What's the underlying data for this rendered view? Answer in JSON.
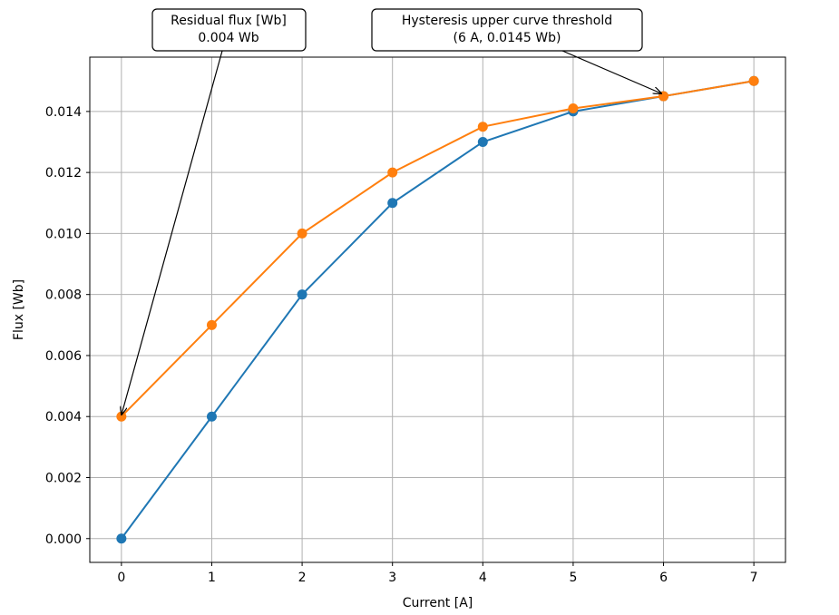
{
  "chart_data": {
    "type": "line",
    "xlabel": "Current [A]",
    "ylabel": "Flux [Wb]",
    "x": [
      0,
      1,
      2,
      3,
      4,
      5,
      6,
      7
    ],
    "xlim": [
      -0.35,
      7.35
    ],
    "ylim": [
      -0.00078,
      0.01578
    ],
    "x_ticks": [
      "0",
      "1",
      "2",
      "3",
      "4",
      "5",
      "6",
      "7"
    ],
    "y_ticks": [
      "0.000",
      "0.002",
      "0.004",
      "0.006",
      "0.008",
      "0.010",
      "0.012",
      "0.014"
    ],
    "grid": true,
    "series": [
      {
        "values": [
          0.0,
          0.004,
          0.008,
          0.011,
          0.013,
          0.014,
          0.0145,
          0.015
        ],
        "color": "#1f77b4",
        "marker": "circle"
      },
      {
        "values": [
          0.004,
          0.007,
          0.01,
          0.012,
          0.0135,
          0.0141,
          0.0145,
          0.015
        ],
        "color": "#ff7f0e",
        "marker": "circle"
      }
    ],
    "annotations": [
      {
        "lines": [
          "Residual flux [Wb]",
          "0.004 Wb"
        ],
        "target": [
          0,
          0.004
        ]
      },
      {
        "lines": [
          "Hysteresis upper curve threshold",
          "(6 A, 0.0145 Wb)"
        ],
        "target": [
          6,
          0.0145
        ]
      }
    ]
  }
}
